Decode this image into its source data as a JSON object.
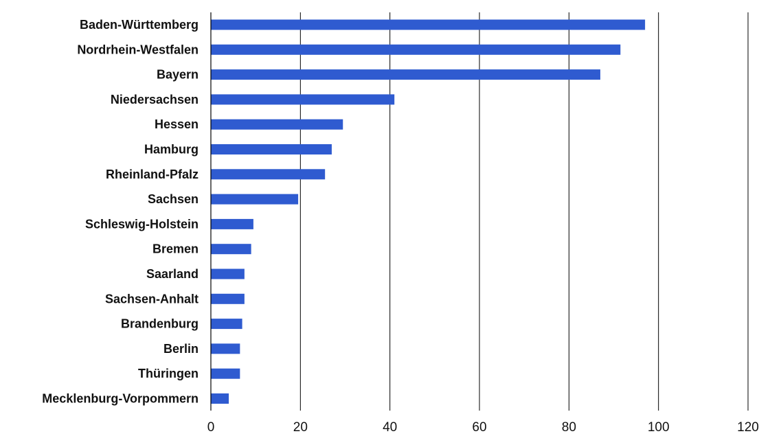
{
  "chart_data": {
    "type": "bar",
    "orientation": "horizontal",
    "title": "",
    "xlabel": "",
    "ylabel": "",
    "xlim": [
      0,
      120
    ],
    "x_ticks": [
      0,
      20,
      40,
      60,
      80,
      100,
      120
    ],
    "grid": "vertical",
    "bar_color": "#2f5bd0",
    "categories": [
      "Baden-Württemberg",
      "Nordrhein-Westfalen",
      "Bayern",
      "Niedersachsen",
      "Hessen",
      "Hamburg",
      "Rheinland-Pfalz",
      "Sachsen",
      "Schleswig-Holstein",
      "Bremen",
      "Saarland",
      "Sachsen-Anhalt",
      "Brandenburg",
      "Berlin",
      "Thüringen",
      "Mecklenburg-Vorpommern"
    ],
    "values": [
      97,
      91.5,
      87,
      41,
      29.5,
      27,
      25.5,
      19.5,
      9.5,
      9,
      7.5,
      7.5,
      7,
      6.5,
      6.5,
      4
    ]
  }
}
